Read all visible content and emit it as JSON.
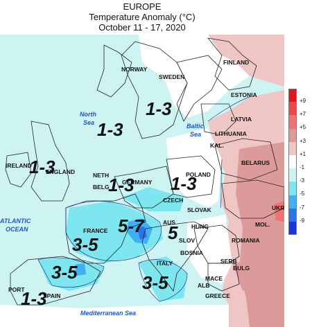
{
  "header": {
    "region": "EUROPE",
    "metric": "Temperature Anomaly (°C)",
    "period": "October 11 - 17, 2020"
  },
  "legend": {
    "bins": [
      {
        "color": "#e4141b",
        "label": "+9"
      },
      {
        "color": "#f0454a",
        "label": "+7"
      },
      {
        "color": "#ee7473",
        "label": "+5"
      },
      {
        "color": "#dc9a9a",
        "label": "+3"
      },
      {
        "color": "#f0c6c4",
        "label": "+1"
      },
      {
        "color": "#ffffff",
        "label": "-1"
      },
      {
        "color": "#cdf3f3",
        "label": "-3"
      },
      {
        "color": "#7ee6ee",
        "label": "-5"
      },
      {
        "color": "#3fb0f2",
        "label": "-7"
      },
      {
        "color": "#2c72e8",
        "label": "-9"
      },
      {
        "color": "#1736e2",
        "label": ""
      }
    ]
  },
  "countries": {
    "finland": "FINLAND",
    "norway": "NORWAY",
    "sweden": "SWEDEN",
    "estonia": "ESTONIA",
    "latvia": "LATVIA",
    "lithuania": "LITHUANIA",
    "kal": "KAL.",
    "belarus": "BELARUS",
    "ireland": "IRELAND",
    "england": "ENGLAND",
    "neth": "NETH",
    "belg": "BELG",
    "germany": "GERMANY",
    "poland": "POLAND",
    "czech": "CZECH",
    "slovak": "SLOVAK",
    "ukr": "UKR",
    "france": "FRANCE",
    "aus": "AUS",
    "hung": "HUNG",
    "mol": "MOL.",
    "romania": "ROMANIA",
    "slov": "SLOV",
    "bosnia": "BOSNIA",
    "serb": "SERB",
    "bulg": "BULG",
    "italy": "ITALY",
    "alb": "ALB",
    "mace": "MACE",
    "greece": "GREECE",
    "port": "PORT",
    "spain": "SPAIN"
  },
  "seas": {
    "north_sea_1": "North",
    "north_sea_2": "Sea",
    "baltic_sea_1": "Baltic",
    "baltic_sea_2": "Sea",
    "atlantic_1": "ATLANTIC",
    "atlantic_2": "OCEAN",
    "mediterranean": "Mediterranean Sea"
  },
  "anomaly_labels": {
    "scandinavia": "1-3",
    "north_sea": "1-3",
    "british_isles": "1-3",
    "benelux_germany": "1-3",
    "poland": "1-3",
    "alps": "5-7",
    "balkans": "5",
    "france": "3-5",
    "iberia_north": "3-5",
    "iberia_south": "1-3",
    "italy": "3-5"
  }
}
